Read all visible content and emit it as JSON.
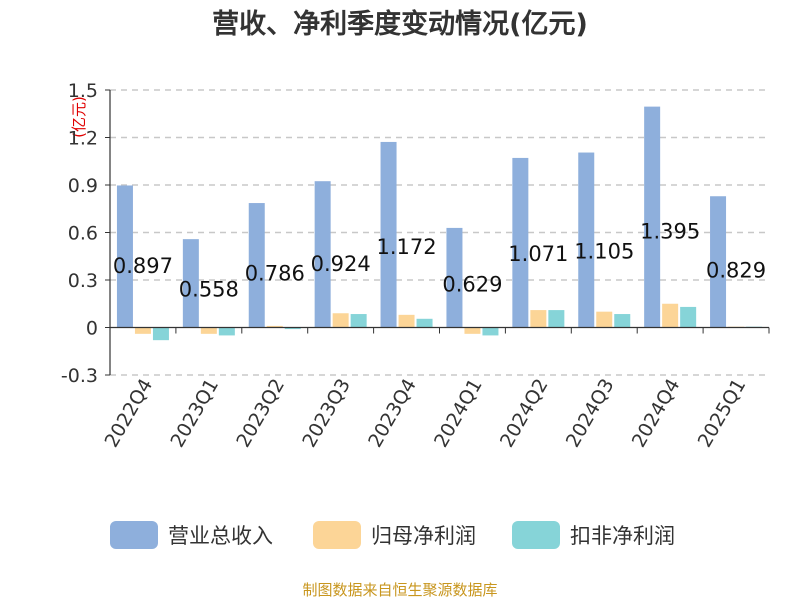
{
  "chart_data": {
    "type": "bar",
    "title": "营收、净利季度变动情况(亿元)",
    "unit_label": "(亿元)",
    "categories": [
      "2022Q4",
      "2023Q1",
      "2023Q2",
      "2023Q3",
      "2023Q4",
      "2024Q1",
      "2024Q2",
      "2024Q3",
      "2024Q4",
      "2025Q1"
    ],
    "ylim": [
      -0.3,
      1.5
    ],
    "yticks": [
      -0.3,
      0,
      0.3,
      0.6,
      0.9,
      1.2,
      1.5
    ],
    "ytick_labels": [
      "-0.3",
      "0",
      "0.3",
      "0.6",
      "0.9",
      "1.2",
      "1.5"
    ],
    "grid": true,
    "legend_position": "bottom",
    "series": [
      {
        "name": "营业总收入",
        "color": "#8eafdc",
        "values": [
          0.897,
          0.558,
          0.786,
          0.924,
          1.172,
          0.629,
          1.071,
          1.105,
          1.395,
          0.829
        ],
        "labels": [
          "0.897",
          "0.558",
          "0.786",
          "0.924",
          "1.172",
          "0.629",
          "1.071",
          "1.105",
          "1.395",
          "0.829"
        ]
      },
      {
        "name": "归母净利润",
        "color": "#fcd597",
        "values": [
          -0.04,
          -0.04,
          0.01,
          0.09,
          0.08,
          -0.04,
          0.11,
          0.1,
          0.15,
          0.005
        ]
      },
      {
        "name": "扣非净利润",
        "color": "#86d4d8",
        "values": [
          -0.08,
          -0.05,
          -0.01,
          0.085,
          0.055,
          -0.05,
          0.11,
          0.085,
          0.13,
          0.005
        ]
      }
    ]
  },
  "source_text": "制图数据来自恒生聚源数据库"
}
